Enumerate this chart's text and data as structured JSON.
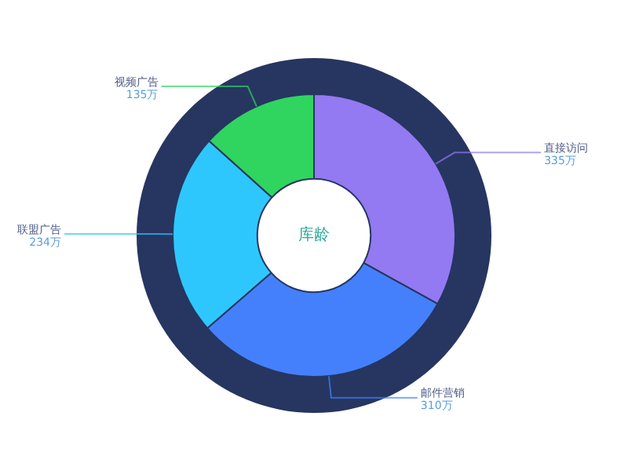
{
  "chart_data": {
    "type": "donut",
    "title": "库龄",
    "categories": [
      "直接访问",
      "邮件营销",
      "联盟广告",
      "视频广告"
    ],
    "values": [
      335,
      310,
      234,
      135
    ],
    "value_labels": [
      "335万",
      "310万",
      "234万",
      "135万"
    ],
    "colors": [
      "#9379f2",
      "#4580fc",
      "#2ec7fd",
      "#2fd55f"
    ],
    "legend": false
  }
}
